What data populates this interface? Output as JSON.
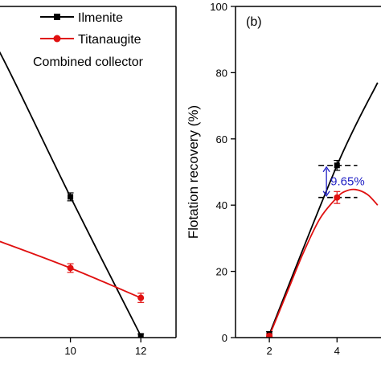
{
  "chart_data": [
    {
      "type": "line",
      "panel": "left",
      "ylim": [
        0,
        100
      ],
      "xlim": [
        8,
        13
      ],
      "xticks": [
        10,
        12
      ],
      "legend": {
        "placement": "top-right",
        "entries": [
          "Ilmenite",
          "Titanaugite"
        ],
        "caption": "Combined collector"
      },
      "series": [
        {
          "name": "Ilmenite",
          "color": "#000000",
          "marker": "square",
          "markers": [
            {
              "x": 10,
              "y": 42.5,
              "err": 1.2
            },
            {
              "x": 12,
              "y": 0.5,
              "err": 0.6
            }
          ],
          "curve": [
            {
              "x": 7.6,
              "y": 90
            },
            {
              "x": 8.0,
              "y": 86
            },
            {
              "x": 10,
              "y": 42.5
            },
            {
              "x": 12,
              "y": 0.5
            }
          ]
        },
        {
          "name": "Titanaugite",
          "color": "#e01010",
          "marker": "circle",
          "markers": [
            {
              "x": 10,
              "y": 21,
              "err": 1.3
            },
            {
              "x": 12,
              "y": 12,
              "err": 1.4
            }
          ],
          "curve": [
            {
              "x": 7.6,
              "y": 30.5
            },
            {
              "x": 8.0,
              "y": 29
            },
            {
              "x": 10,
              "y": 21
            },
            {
              "x": 12,
              "y": 12
            }
          ]
        }
      ]
    },
    {
      "type": "line",
      "panel": "right",
      "panel_label": "(b)",
      "ylabel": "Flotation recovery (%)",
      "ylim": [
        0,
        100
      ],
      "xlim": [
        1,
        5.3
      ],
      "yticks": [
        0,
        20,
        40,
        60,
        80,
        100
      ],
      "xticks": [
        2,
        4
      ],
      "annotation": {
        "text": "9.65%",
        "x_from": 3.45,
        "x_to": 4.6,
        "y_top": 52,
        "y_bottom": 42.3
      },
      "series": [
        {
          "name": "Ilmenite",
          "color": "#000000",
          "marker": "square",
          "markers": [
            {
              "x": 2,
              "y": 1,
              "err": 0.8
            },
            {
              "x": 4,
              "y": 52,
              "err": 1.5
            }
          ],
          "curve": [
            {
              "x": 2,
              "y": 1
            },
            {
              "x": 4,
              "y": 52
            },
            {
              "x": 5.2,
              "y": 77
            }
          ]
        },
        {
          "name": "Titanaugite",
          "color": "#e01010",
          "marker": "circle",
          "markers": [
            {
              "x": 2,
              "y": 0.5,
              "err": 0.6
            },
            {
              "x": 4,
              "y": 42.3,
              "err": 1.8
            }
          ],
          "curve": [
            {
              "x": 2,
              "y": 0.5
            },
            {
              "x": 2.5,
              "y": 13
            },
            {
              "x": 3.0,
              "y": 25.5
            },
            {
              "x": 3.5,
              "y": 36
            },
            {
              "x": 4.0,
              "y": 42.3
            },
            {
              "x": 4.25,
              "y": 44.2
            },
            {
              "x": 4.55,
              "y": 44.7
            },
            {
              "x": 4.9,
              "y": 43.2
            },
            {
              "x": 5.2,
              "y": 40
            }
          ]
        }
      ]
    }
  ]
}
